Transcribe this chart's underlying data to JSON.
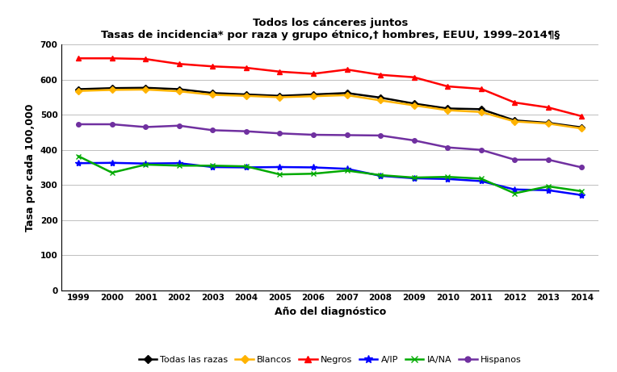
{
  "title_line1": "Todos los cánceres juntos",
  "title_line2": "Tasas de incidencia* por raza y grupo étnico,† hombres, EEUU, 1999–2014¶§",
  "xlabel": "Año del diagnóstico",
  "ylabel": "Tasa por cada 100,000",
  "years": [
    1999,
    2000,
    2001,
    2002,
    2003,
    2004,
    2005,
    2006,
    2007,
    2008,
    2009,
    2010,
    2011,
    2012,
    2013,
    2014
  ],
  "series": {
    "Todas las razas": {
      "values": [
        573,
        576,
        577,
        573,
        562,
        558,
        554,
        558,
        562,
        549,
        532,
        518,
        516,
        484,
        477,
        464
      ],
      "color": "#000000",
      "marker": "D",
      "linewidth": 1.8,
      "markersize": 4
    },
    "Blancos": {
      "values": [
        568,
        571,
        572,
        567,
        557,
        554,
        550,
        553,
        556,
        541,
        527,
        513,
        508,
        481,
        475,
        461
      ],
      "color": "#FFB300",
      "marker": "D",
      "linewidth": 1.8,
      "markersize": 4
    },
    "Negros": {
      "values": [
        661,
        661,
        659,
        645,
        638,
        634,
        623,
        617,
        629,
        614,
        607,
        581,
        574,
        535,
        521,
        496
      ],
      "color": "#FF0000",
      "marker": "^",
      "linewidth": 1.8,
      "markersize": 5
    },
    "A/IP": {
      "values": [
        362,
        363,
        361,
        362,
        351,
        350,
        351,
        350,
        346,
        326,
        319,
        317,
        311,
        287,
        285,
        271
      ],
      "color": "#0000FF",
      "marker": "*",
      "linewidth": 1.8,
      "markersize": 6
    },
    "IA/NA": {
      "values": [
        382,
        335,
        358,
        355,
        355,
        353,
        330,
        332,
        341,
        328,
        321,
        323,
        318,
        276,
        296,
        282
      ],
      "color": "#00AA00",
      "marker": "x",
      "linewidth": 1.8,
      "markersize": 5
    },
    "Hispanos": {
      "values": [
        473,
        473,
        465,
        469,
        456,
        453,
        447,
        443,
        442,
        441,
        427,
        407,
        400,
        372,
        372,
        350
      ],
      "color": "#7030A0",
      "marker": "o",
      "linewidth": 1.8,
      "markersize": 4
    }
  },
  "ylim": [
    0,
    700
  ],
  "yticks": [
    0,
    100,
    200,
    300,
    400,
    500,
    600,
    700
  ],
  "background_color": "#FFFFFF",
  "grid_color": "#BEBEBE"
}
